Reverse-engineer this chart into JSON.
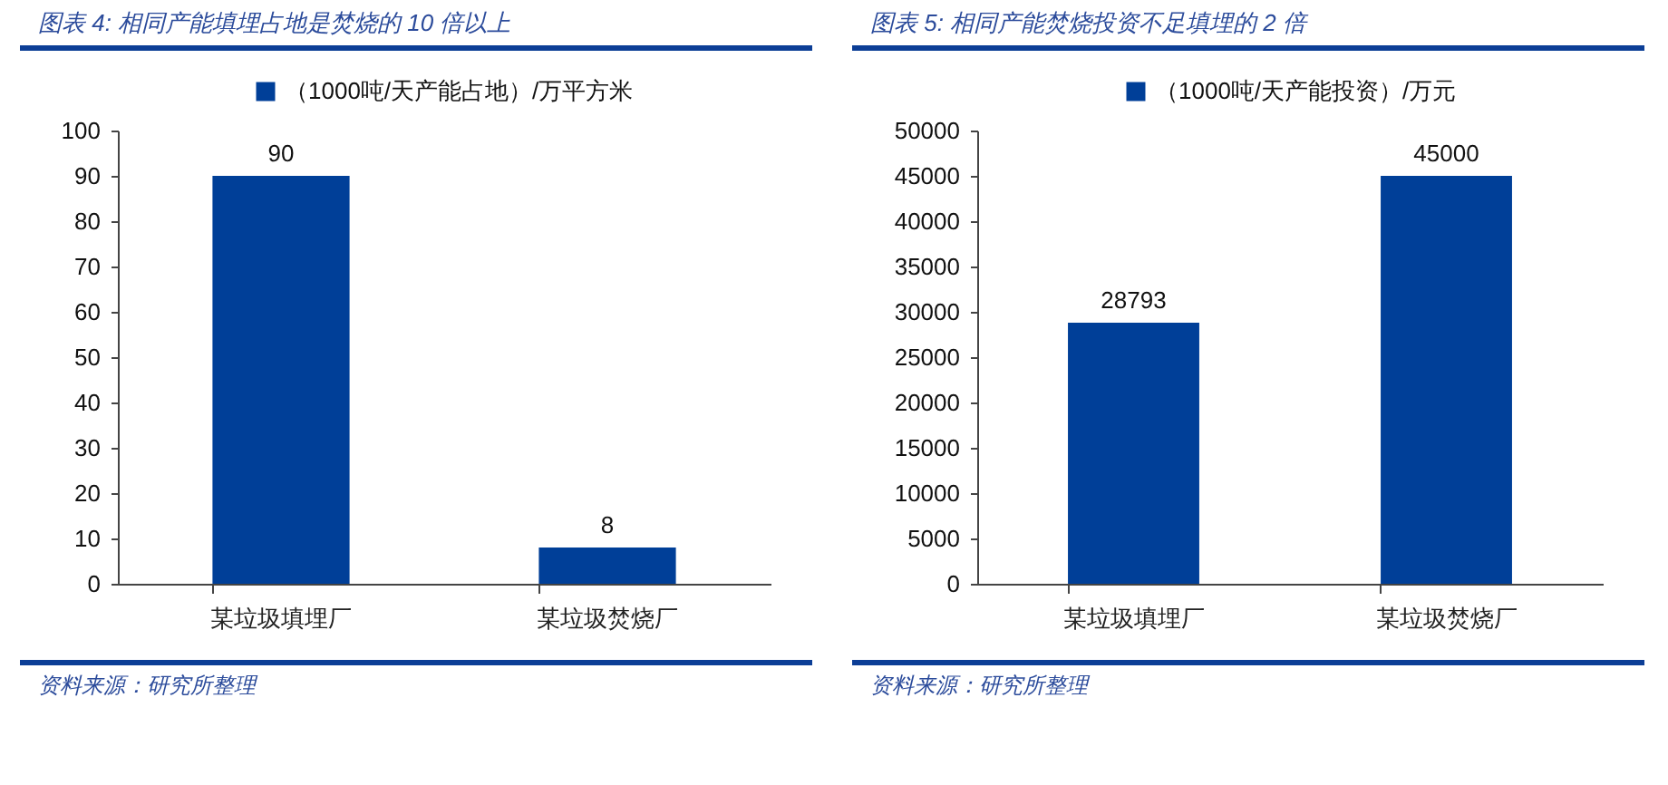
{
  "chart_data": [
    {
      "type": "bar",
      "title": "图表 4: 相同产能填埋占地是焚烧的 10 倍以上",
      "categories": [
        "某垃圾填埋厂",
        "某垃圾焚烧厂"
      ],
      "series": [
        {
          "name": "（1000吨/天产能占地）/万平方米",
          "color": "#003f98",
          "values": [
            90,
            8
          ]
        }
      ],
      "ylim": [
        0,
        100
      ],
      "yticks": [
        0,
        10,
        20,
        30,
        40,
        50,
        60,
        70,
        80,
        90,
        100
      ],
      "data_labels": true,
      "legend": "top",
      "grid": false,
      "annotations": [
        "资料来源：研究所整理"
      ]
    },
    {
      "type": "bar",
      "title": "图表 5: 相同产能焚烧投资不足填埋的 2 倍",
      "categories": [
        "某垃圾填埋厂",
        "某垃圾焚烧厂"
      ],
      "series": [
        {
          "name": "（1000吨/天产能投资）/万元",
          "color": "#003f98",
          "values": [
            28793,
            45000
          ]
        }
      ],
      "ylim": [
        0,
        50000
      ],
      "yticks": [
        0,
        5000,
        10000,
        15000,
        20000,
        25000,
        30000,
        35000,
        40000,
        45000,
        50000
      ],
      "data_labels": true,
      "legend": "top",
      "grid": false,
      "annotations": [
        "资料来源：研究所整理"
      ]
    }
  ]
}
